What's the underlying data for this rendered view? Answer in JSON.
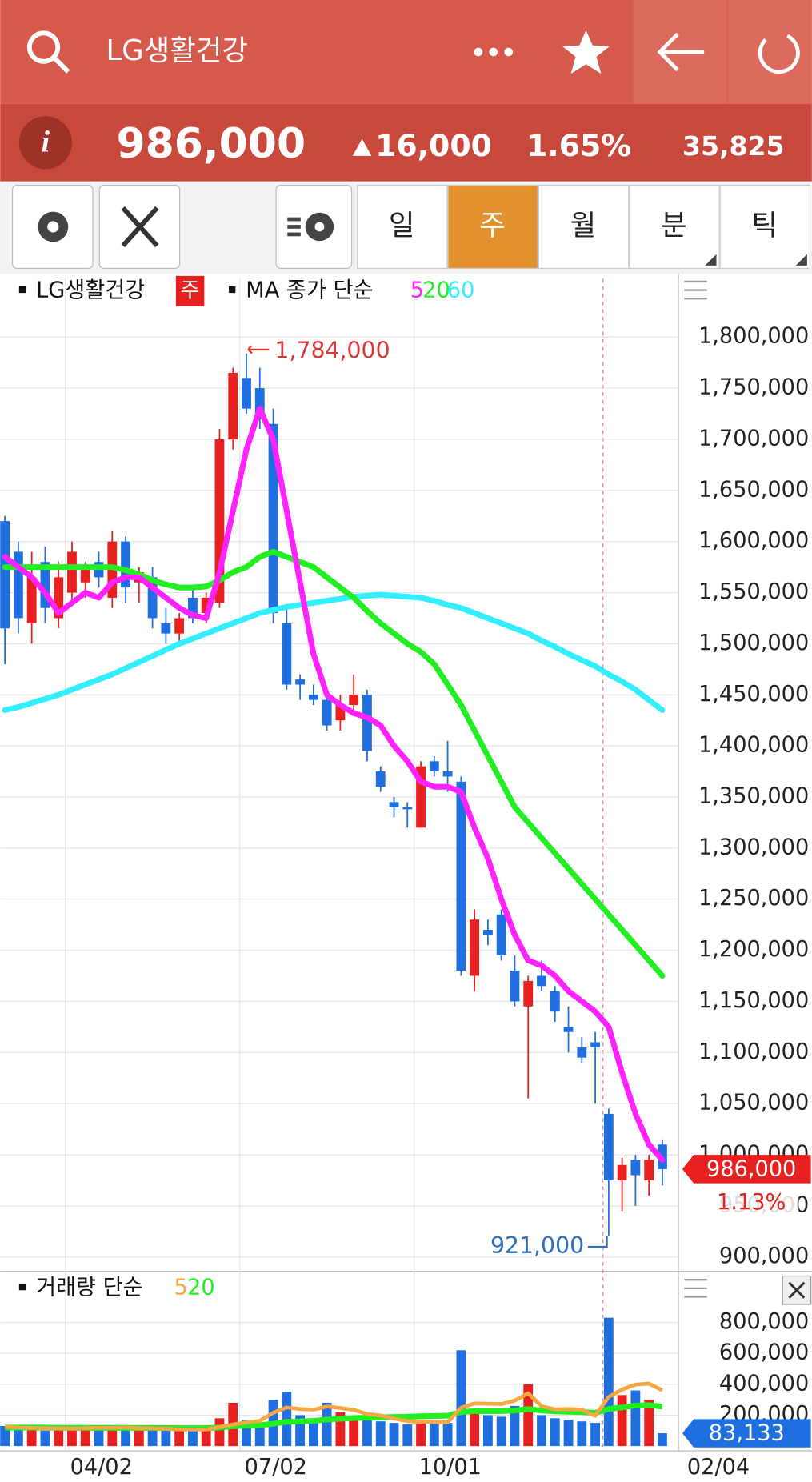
{
  "header": {
    "title": "LG생활건강"
  },
  "quote": {
    "price": "986,000",
    "change": "16,000",
    "change_pct": "1.65%",
    "volume": "35,825"
  },
  "toolbar": {
    "tabs": [
      "일",
      "주",
      "월",
      "분",
      "틱"
    ]
  },
  "chart_data": [
    {
      "type": "candlestick",
      "legend_name": "LG생활건강",
      "period": "주",
      "ma_label": "MA 종가 단순",
      "categories": [
        null,
        null,
        null,
        null,
        null,
        "04/02",
        null,
        null,
        null,
        null,
        null,
        null,
        null,
        null,
        null,
        null,
        null,
        null,
        "07/02",
        null,
        null,
        null,
        null,
        null,
        null,
        null,
        null,
        null,
        null,
        null,
        null,
        "10/01",
        null,
        null,
        null,
        null,
        null,
        null,
        null,
        null,
        null,
        null,
        null,
        null,
        null,
        null,
        null,
        null,
        null,
        null
      ],
      "x_end_label": "02/04",
      "open": [
        1620000,
        1590000,
        1520000,
        1580000,
        1525000,
        1550000,
        1560000,
        1580000,
        1545000,
        1600000,
        1560000,
        1565000,
        1520000,
        1510000,
        1545000,
        1530000,
        1540000,
        1700000,
        1760000,
        1750000,
        1715000,
        1520000,
        1465000,
        1450000,
        1445000,
        1425000,
        1440000,
        1450000,
        1375000,
        1345000,
        1340000,
        1320000,
        1385000,
        1375000,
        1365000,
        1175000,
        1220000,
        1235000,
        1180000,
        1145000,
        1175000,
        1160000,
        1125000,
        1105000,
        1110000,
        1040000,
        975000,
        995000,
        975000,
        1010000
      ],
      "high": [
        1625000,
        1600000,
        1590000,
        1595000,
        1580000,
        1600000,
        1580000,
        1590000,
        1610000,
        1605000,
        1575000,
        1575000,
        1535000,
        1530000,
        1555000,
        1550000,
        1710000,
        1770000,
        1784000,
        1770000,
        1730000,
        1535000,
        1470000,
        1460000,
        1455000,
        1450000,
        1470000,
        1455000,
        1380000,
        1350000,
        1345000,
        1385000,
        1390000,
        1405000,
        1370000,
        1240000,
        1230000,
        1240000,
        1195000,
        1175000,
        1190000,
        1165000,
        1145000,
        1115000,
        1120000,
        1045000,
        997000,
        1000000,
        1000000,
        1015000
      ],
      "low": [
        1480000,
        1510000,
        1500000,
        1520000,
        1515000,
        1540000,
        1545000,
        1555000,
        1535000,
        1540000,
        1540000,
        1515000,
        1500000,
        1500000,
        1520000,
        1520000,
        1535000,
        1690000,
        1725000,
        1710000,
        1520000,
        1455000,
        1445000,
        1440000,
        1415000,
        1415000,
        1430000,
        1385000,
        1355000,
        1330000,
        1320000,
        1320000,
        1370000,
        1355000,
        1175000,
        1160000,
        1205000,
        1190000,
        1145000,
        1055000,
        1160000,
        1130000,
        1100000,
        1090000,
        1050000,
        921000,
        945000,
        950000,
        960000,
        970000
      ],
      "close": [
        1515000,
        1525000,
        1565000,
        1535000,
        1565000,
        1590000,
        1575000,
        1565000,
        1600000,
        1555000,
        1570000,
        1525000,
        1510000,
        1525000,
        1525000,
        1545000,
        1700000,
        1765000,
        1730000,
        1720000,
        1530000,
        1460000,
        1460000,
        1445000,
        1420000,
        1440000,
        1450000,
        1395000,
        1360000,
        1340000,
        1338000,
        1380000,
        1375000,
        1370000,
        1180000,
        1230000,
        1215000,
        1195000,
        1150000,
        1170000,
        1165000,
        1140000,
        1120000,
        1095000,
        1105000,
        975000,
        990000,
        980000,
        995000,
        986000
      ],
      "up_color": "#e8201f",
      "down_color": "#1f6fe0",
      "series": [
        {
          "name": "5",
          "color": "#ff22ff",
          "values": [
            1585000,
            1575000,
            1565000,
            1550000,
            1530000,
            1540000,
            1550000,
            1545000,
            1560000,
            1565000,
            1565000,
            1555000,
            1545000,
            1535000,
            1528000,
            1525000,
            1570000,
            1630000,
            1690000,
            1730000,
            1700000,
            1630000,
            1560000,
            1490000,
            1450000,
            1440000,
            1432000,
            1428000,
            1420000,
            1400000,
            1385000,
            1365000,
            1360000,
            1360000,
            1355000,
            1320000,
            1290000,
            1250000,
            1215000,
            1190000,
            1185000,
            1175000,
            1160000,
            1150000,
            1140000,
            1125000,
            1080000,
            1040000,
            1010000,
            995000
          ]
        },
        {
          "name": "20",
          "color": "#22ee22",
          "values": [
            1575000,
            1575000,
            1575000,
            1575000,
            1575000,
            1575000,
            1575000,
            1575000,
            1575000,
            1572000,
            1568000,
            1562000,
            1558000,
            1555000,
            1555000,
            1556000,
            1562000,
            1570000,
            1575000,
            1585000,
            1590000,
            1585000,
            1580000,
            1575000,
            1565000,
            1555000,
            1545000,
            1532000,
            1520000,
            1510000,
            1500000,
            1492000,
            1480000,
            1460000,
            1440000,
            1415000,
            1390000,
            1365000,
            1340000,
            1325000,
            1310000,
            1295000,
            1280000,
            1265000,
            1250000,
            1235000,
            1220000,
            1205000,
            1190000,
            1175000
          ]
        },
        {
          "name": "60",
          "color": "#33eeff",
          "values": [
            1435000,
            1438000,
            1442000,
            1446000,
            1450000,
            1455000,
            1460000,
            1465000,
            1470000,
            1476000,
            1482000,
            1488000,
            1494000,
            1500000,
            1505000,
            1510000,
            1515000,
            1520000,
            1525000,
            1530000,
            1533000,
            1536000,
            1538000,
            1540000,
            1542000,
            1544000,
            1546000,
            1547000,
            1548000,
            1547000,
            1546000,
            1545000,
            1542000,
            1538000,
            1535000,
            1530000,
            1525000,
            1520000,
            1515000,
            1510000,
            1503000,
            1497000,
            1490000,
            1484000,
            1478000,
            1470000,
            1463000,
            1455000,
            1445000,
            1435000
          ]
        }
      ],
      "ylim": [
        886000,
        1857000
      ],
      "yticks": [
        {
          "value": 900000,
          "label": "900,000"
        },
        {
          "value": 950000,
          "label": "950,000"
        },
        {
          "value": 1000000,
          "label": "1,000,000"
        },
        {
          "value": 1050000,
          "label": "1,050,000"
        },
        {
          "value": 1100000,
          "label": "1,100,000"
        },
        {
          "value": 1150000,
          "label": "1,150,000"
        },
        {
          "value": 1200000,
          "label": "1,200,000"
        },
        {
          "value": 1250000,
          "label": "1,250,000"
        },
        {
          "value": 1300000,
          "label": "1,300,000"
        },
        {
          "value": 1350000,
          "label": "1,350,000"
        },
        {
          "value": 1400000,
          "label": "1,400,000"
        },
        {
          "value": 1450000,
          "label": "1,450,000"
        },
        {
          "value": 1500000,
          "label": "1,500,000"
        },
        {
          "value": 1550000,
          "label": "1,550,000"
        },
        {
          "value": 1600000,
          "label": "1,600,000"
        },
        {
          "value": 1650000,
          "label": "1,650,000"
        },
        {
          "value": 1700000,
          "label": "1,700,000"
        },
        {
          "value": 1750000,
          "label": "1,750,000"
        },
        {
          "value": 1800000,
          "label": "1,800,000"
        }
      ],
      "grid": true,
      "annotations": [
        {
          "value": 1784000,
          "label": "1,784,000",
          "color": "#d83a3a"
        },
        {
          "value": 921000,
          "label": "921,000",
          "color": "#2f6fc0"
        },
        {
          "value": 986000,
          "label": "986,000",
          "color": "#e8201f"
        },
        {
          "value": 1.13,
          "label": "1.13%",
          "color": "#e8201f"
        }
      ]
    },
    {
      "type": "bar",
      "legend_name": "거래량 단순",
      "values": [
        130000,
        110000,
        120000,
        100000,
        115000,
        120000,
        110000,
        125000,
        120000,
        110000,
        115000,
        105000,
        110000,
        100000,
        105000,
        115000,
        180000,
        280000,
        170000,
        150000,
        300000,
        350000,
        200000,
        180000,
        280000,
        220000,
        190000,
        170000,
        160000,
        150000,
        140000,
        170000,
        160000,
        150000,
        620000,
        240000,
        200000,
        190000,
        260000,
        400000,
        200000,
        180000,
        170000,
        160000,
        150000,
        830000,
        330000,
        360000,
        300000,
        83133
      ],
      "series": [
        {
          "name": "5",
          "color": "#f4a742",
          "values": [
            125000,
            120000,
            118000,
            115000,
            115000,
            113000,
            116000,
            118000,
            118000,
            120000,
            116000,
            115000,
            112000,
            108000,
            107000,
            107000,
            123000,
            140000,
            154000,
            163000,
            216000,
            250000,
            240000,
            236000,
            256000,
            246000,
            234000,
            208000,
            198000,
            178000,
            162000,
            158000,
            156000,
            154000,
            248000,
            276000,
            274000,
            272000,
            294000,
            342000,
            258000,
            238000,
            240000,
            236000,
            196000,
            318000,
            366000,
            398000,
            404000,
            361000
          ]
        },
        {
          "name": "20",
          "color": "#22ee22",
          "values": [
            120000,
            120000,
            120000,
            120000,
            118000,
            118000,
            118000,
            118000,
            118000,
            118000,
            117000,
            117000,
            117000,
            116000,
            116000,
            116000,
            120000,
            128000,
            132000,
            135000,
            145000,
            157000,
            160000,
            163000,
            172000,
            177000,
            181000,
            184000,
            186000,
            188000,
            190000,
            193000,
            195000,
            197000,
            220000,
            226000,
            226000,
            226000,
            230000,
            240000,
            230000,
            225000,
            222000,
            220000,
            215000,
            240000,
            250000,
            262000,
            265000,
            255000
          ]
        }
      ],
      "ylim": [
        0,
        1100000
      ],
      "yticks": [
        {
          "value": 200000,
          "label": "200,000"
        },
        {
          "value": 400000,
          "label": "400,000"
        },
        {
          "value": 600000,
          "label": "600,000"
        },
        {
          "value": 800000,
          "label": "800,000"
        }
      ],
      "grid": true,
      "last_label": {
        "value": 83133,
        "label": "83,133",
        "color": "#1f6fe0"
      }
    }
  ]
}
